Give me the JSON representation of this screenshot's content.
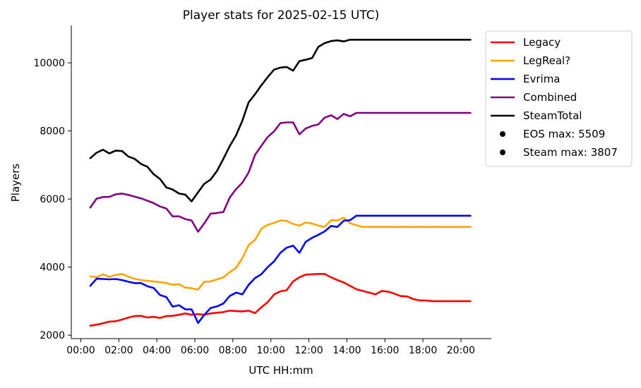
{
  "chart_data": {
    "type": "line",
    "title": "Player stats for 2025-02-15 UTC)",
    "xlabel": "UTC HH:mm",
    "ylabel": "Players",
    "x_unit": "hours",
    "xlim": [
      -0.5,
      21.6
    ],
    "ylim": [
      1900,
      11100
    ],
    "x_ticks": [
      0,
      2,
      4,
      6,
      8,
      10,
      12,
      14,
      16,
      18,
      20
    ],
    "x_tick_labels": [
      "00:00",
      "02:00",
      "04:00",
      "06:00",
      "08:00",
      "10:00",
      "12:00",
      "14:00",
      "16:00",
      "18:00",
      "20:00"
    ],
    "y_ticks": [
      2000,
      4000,
      6000,
      8000,
      10000
    ],
    "y_tick_labels": [
      "2000",
      "4000",
      "6000",
      "8000",
      "10000"
    ],
    "grid": false,
    "legend_position": "outside-top-right",
    "x": [
      0.5,
      0.83,
      1.17,
      1.5,
      1.83,
      2.17,
      2.5,
      2.83,
      3.17,
      3.5,
      3.83,
      4.17,
      4.5,
      4.83,
      5.17,
      5.5,
      5.83,
      6.17,
      6.5,
      6.83,
      7.17,
      7.5,
      7.83,
      8.17,
      8.5,
      8.83,
      9.17,
      9.5,
      9.83,
      10.17,
      10.5,
      10.83,
      11.17,
      11.5,
      11.83,
      12.17,
      12.5,
      12.83,
      13.17,
      13.5,
      13.83,
      14.17,
      14.5,
      14.83,
      15.17,
      15.5,
      15.83,
      16.17,
      16.5,
      16.83,
      17.17,
      17.5,
      17.83,
      18.17,
      18.5,
      18.83,
      19.17,
      19.5,
      19.83,
      20.17,
      20.5
    ],
    "series": [
      {
        "name": "Legacy",
        "color": "#ff0000",
        "values": [
          2280,
          2310,
          2350,
          2400,
          2410,
          2460,
          2520,
          2560,
          2570,
          2520,
          2540,
          2510,
          2560,
          2570,
          2600,
          2640,
          2600,
          2620,
          2600,
          2640,
          2660,
          2680,
          2720,
          2710,
          2700,
          2720,
          2650,
          2820,
          2970,
          3200,
          3290,
          3320,
          3580,
          3700,
          3780,
          3790,
          3800,
          3800,
          3700,
          3620,
          3550,
          3450,
          3350,
          3300,
          3250,
          3200,
          3300,
          3280,
          3220,
          3150,
          3140,
          3060,
          3020,
          3020,
          3000,
          3000,
          3000,
          3000,
          3000,
          3000,
          3000
        ]
      },
      {
        "name": "LegReal?",
        "color": "#ffa500",
        "values": [
          3730,
          3700,
          3790,
          3710,
          3770,
          3800,
          3720,
          3660,
          3620,
          3600,
          3580,
          3560,
          3530,
          3480,
          3500,
          3400,
          3380,
          3340,
          3570,
          3580,
          3640,
          3700,
          3850,
          3980,
          4260,
          4650,
          4800,
          5130,
          5240,
          5300,
          5370,
          5360,
          5270,
          5220,
          5310,
          5280,
          5220,
          5180,
          5380,
          5370,
          5450,
          5290,
          5230,
          5180,
          5180,
          5180,
          5180,
          5180,
          5180,
          5180,
          5180,
          5180,
          5180,
          5180,
          5180,
          5180,
          5180,
          5180,
          5180,
          5180,
          5180
        ]
      },
      {
        "name": "Evrima",
        "color": "#0000ff",
        "values": [
          3450,
          3660,
          3650,
          3640,
          3650,
          3620,
          3570,
          3530,
          3530,
          3440,
          3390,
          3180,
          3120,
          2840,
          2880,
          2760,
          2760,
          2360,
          2600,
          2800,
          2850,
          2930,
          3150,
          3250,
          3200,
          3480,
          3680,
          3790,
          4000,
          4170,
          4420,
          4570,
          4630,
          4420,
          4740,
          4860,
          4950,
          5050,
          5210,
          5180,
          5360,
          5380,
          5510,
          5510,
          5510,
          5510,
          5510,
          5510,
          5510,
          5510,
          5510,
          5510,
          5510,
          5510,
          5510,
          5510,
          5510,
          5510,
          5510,
          5510,
          5510
        ]
      },
      {
        "name": "Combined",
        "color": "#800080",
        "values": [
          5750,
          6010,
          6060,
          6060,
          6140,
          6160,
          6120,
          6070,
          6020,
          5950,
          5880,
          5780,
          5720,
          5490,
          5490,
          5410,
          5370,
          5040,
          5290,
          5570,
          5590,
          5620,
          6040,
          6290,
          6480,
          6780,
          7300,
          7560,
          7820,
          7990,
          8230,
          8250,
          8250,
          7900,
          8070,
          8150,
          8190,
          8390,
          8460,
          8350,
          8500,
          8430,
          8530,
          8530,
          8530,
          8530,
          8530,
          8530,
          8530,
          8530,
          8530,
          8530,
          8530,
          8530,
          8530,
          8530,
          8530,
          8530,
          8530,
          8530,
          8530
        ]
      },
      {
        "name": "SteamTotal",
        "color": "#000000",
        "values": [
          7200,
          7360,
          7450,
          7340,
          7420,
          7410,
          7250,
          7180,
          7030,
          6950,
          6730,
          6590,
          6340,
          6280,
          6160,
          6130,
          5930,
          6200,
          6450,
          6570,
          6830,
          7180,
          7550,
          7870,
          8300,
          8840,
          9080,
          9340,
          9580,
          9800,
          9860,
          9880,
          9770,
          10050,
          10090,
          10140,
          10470,
          10580,
          10640,
          10660,
          10630,
          10680,
          10680,
          10680,
          10680,
          10680,
          10680,
          10680,
          10680,
          10680,
          10680,
          10680,
          10680,
          10680,
          10680,
          10680,
          10680,
          10680,
          10680,
          10680,
          10680
        ]
      }
    ],
    "legend": [
      {
        "label": "Legacy",
        "kind": "line",
        "color": "#ff0000"
      },
      {
        "label": "LegReal?",
        "kind": "line",
        "color": "#ffa500"
      },
      {
        "label": "Evrima",
        "kind": "line",
        "color": "#0000ff"
      },
      {
        "label": "Combined",
        "kind": "line",
        "color": "#800080"
      },
      {
        "label": "SteamTotal",
        "kind": "line",
        "color": "#000000"
      },
      {
        "label": "EOS max: 5509",
        "kind": "dot",
        "color": "#000000"
      },
      {
        "label": "Steam max: 3807",
        "kind": "dot",
        "color": "#000000"
      }
    ]
  }
}
